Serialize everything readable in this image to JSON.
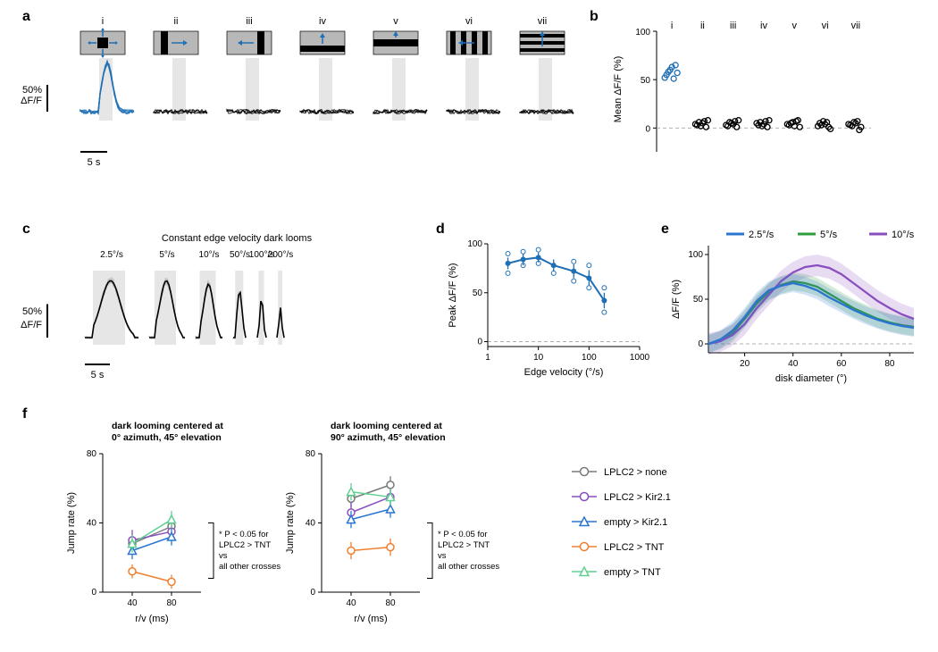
{
  "figure": {
    "background_color": "#ffffff",
    "text_color": "#000000",
    "font_family": "Arial"
  },
  "panel_a": {
    "label": "a",
    "stimuli": [
      "i",
      "ii",
      "iii",
      "iv",
      "v",
      "vi",
      "vii"
    ],
    "yscale_label_top": "50%",
    "yscale_label_bottom": "ΔF/F",
    "xscale_label": "5 s",
    "stimulus_bg": "#b8b8b8",
    "stimulus_fg": "#000000",
    "arrow_color": "#1f6fb5",
    "trace_respond_color": "#1f6fb5",
    "trace_flat_color": "#000000",
    "shaded_window_color": "#e6e6e6",
    "response_peak_pct": 90,
    "flat_noise_amp_pct": 5
  },
  "panel_b": {
    "label": "b",
    "ylabel": "Mean ΔF/F (%)",
    "categories": [
      "i",
      "ii",
      "iii",
      "iv",
      "v",
      "vi",
      "vii"
    ],
    "point_color_first": "#1f6fb5",
    "point_color_rest": "#000000",
    "ylim": [
      -20,
      100
    ],
    "ytick_step": 50,
    "zero_line_color": "#b0b0b0",
    "data": {
      "i": [
        52,
        55,
        58,
        60,
        63,
        51,
        65,
        57
      ],
      "ii": [
        4,
        3,
        6,
        2,
        5,
        7,
        1,
        8
      ],
      "iii": [
        3,
        2,
        6,
        5,
        4,
        7,
        1,
        8
      ],
      "iv": [
        5,
        3,
        6,
        2,
        4,
        7,
        1,
        8
      ],
      "v": [
        4,
        3,
        5,
        6,
        2,
        7,
        8,
        1
      ],
      "vi": [
        2,
        5,
        3,
        7,
        4,
        6,
        1,
        -1
      ],
      "vii": [
        4,
        3,
        2,
        6,
        5,
        7,
        -2,
        1
      ]
    }
  },
  "panel_c": {
    "label": "c",
    "title": "Constant edge velocity dark looms",
    "velocities": [
      "2.5°/s",
      "5°/s",
      "10°/s",
      "50°/s",
      "100°/s",
      "200°/s"
    ],
    "yscale_label_top": "50%",
    "yscale_label_bottom": "ΔF/F",
    "xscale_label": "5 s",
    "shaded_window_color": "#e6e6e6",
    "trace_grey": "#bfbfbf",
    "trace_mean": "#000000",
    "peaks": [
      85,
      85,
      80,
      70,
      60,
      45
    ],
    "widths": [
      60,
      40,
      30,
      15,
      10,
      8
    ]
  },
  "panel_d": {
    "label": "d",
    "xlabel": "Edge velocity (°/s)",
    "ylabel": "Peak ΔF/F (%)",
    "xlog": true,
    "xlim": [
      1,
      1000
    ],
    "ylim": [
      -5,
      100
    ],
    "xtick_labels": [
      "1",
      "10",
      "100",
      "1000"
    ],
    "ytick_step": 50,
    "line_color": "#1f6fb5",
    "scatter_color": "#1f6fb5",
    "zero_line_color": "#b0b0b0",
    "x": [
      2.5,
      5,
      10,
      20,
      50,
      100,
      200
    ],
    "mean": [
      80,
      84,
      86,
      78,
      72,
      65,
      42
    ],
    "err": [
      6,
      6,
      5,
      6,
      7,
      8,
      8
    ],
    "scatter_x": [
      2.5,
      2.5,
      5,
      5,
      10,
      10,
      20,
      50,
      50,
      100,
      100,
      200,
      200
    ],
    "scatter_y": [
      70,
      90,
      78,
      92,
      80,
      94,
      70,
      62,
      82,
      55,
      78,
      30,
      55
    ]
  },
  "panel_e": {
    "label": "e",
    "xlabel": "disk diameter (°)",
    "ylabel": "ΔF/F (%)",
    "xlim": [
      5,
      90
    ],
    "ylim": [
      -10,
      110
    ],
    "xtick_step": 20,
    "ytick_step": 50,
    "zero_line_color": "#b0b0b0",
    "legend": [
      {
        "label": "2.5°/s",
        "color": "#2a75d0"
      },
      {
        "label": "5°/s",
        "color": "#2f9c3e"
      },
      {
        "label": "10°/s",
        "color": "#8a4fbf"
      }
    ],
    "series": {
      "2.5": {
        "color": "#2a75d0",
        "x": [
          5,
          10,
          15,
          20,
          25,
          30,
          35,
          40,
          45,
          50,
          55,
          60,
          65,
          70,
          75,
          80,
          85,
          90
        ],
        "y": [
          0,
          5,
          15,
          30,
          48,
          60,
          65,
          68,
          65,
          60,
          52,
          45,
          38,
          32,
          27,
          23,
          20,
          18
        ],
        "err": 10
      },
      "5": {
        "color": "#2f9c3e",
        "x": [
          5,
          10,
          15,
          20,
          25,
          30,
          35,
          40,
          45,
          50,
          55,
          60,
          65,
          70,
          75,
          80,
          85,
          90
        ],
        "y": [
          0,
          4,
          12,
          28,
          45,
          58,
          66,
          70,
          68,
          64,
          56,
          48,
          40,
          34,
          28,
          24,
          21,
          19
        ],
        "err": 10
      },
      "10": {
        "color": "#8a4fbf",
        "x": [
          5,
          10,
          15,
          20,
          25,
          30,
          35,
          40,
          45,
          50,
          55,
          60,
          65,
          70,
          75,
          80,
          85,
          90
        ],
        "y": [
          0,
          3,
          10,
          22,
          40,
          55,
          70,
          80,
          86,
          88,
          85,
          78,
          68,
          58,
          48,
          40,
          33,
          28
        ],
        "err": 12
      }
    }
  },
  "panel_f": {
    "label": "f",
    "subtitle_left": "dark looming centered at\n0° azimuth, 45° elevation",
    "subtitle_right": "dark looming centered at\n90° azimuth, 45° elevation",
    "xlabel": "r/v (ms)",
    "ylabel": "Jump rate (%)",
    "xtick_labels": [
      "40",
      "80"
    ],
    "ylim": [
      0,
      80
    ],
    "ytick_step": 40,
    "annotation": "* P < 0.05 for\nLPLC2 > TNT\nvs\nall other crosses",
    "legend": [
      {
        "label": "LPLC2 > none",
        "color": "#7a7a7a",
        "marker": "circle"
      },
      {
        "label": "LPLC2 > Kir2.1",
        "color": "#8a4fbf",
        "marker": "circle"
      },
      {
        "label": "empty > Kir2.1",
        "color": "#2a75d0",
        "marker": "triangle"
      },
      {
        "label": "LPLC2 > TNT",
        "color": "#f08030",
        "marker": "circle"
      },
      {
        "label": "empty > TNT",
        "color": "#5fd090",
        "marker": "triangle"
      }
    ],
    "left_plot": {
      "LPLC2_none": {
        "y": [
          28,
          38
        ],
        "err": [
          4,
          4
        ]
      },
      "LPLC2_Kir21": {
        "y": [
          30,
          35
        ],
        "err": [
          6,
          5
        ]
      },
      "empty_Kir21": {
        "y": [
          24,
          32
        ],
        "err": [
          5,
          5
        ]
      },
      "LPLC2_TNT": {
        "y": [
          12,
          6
        ],
        "err": [
          4,
          4
        ]
      },
      "empty_TNT": {
        "y": [
          28,
          42
        ],
        "err": [
          5,
          5
        ]
      }
    },
    "right_plot": {
      "LPLC2_none": {
        "y": [
          54,
          62
        ],
        "err": [
          5,
          5
        ]
      },
      "LPLC2_Kir21": {
        "y": [
          46,
          55
        ],
        "err": [
          6,
          5
        ]
      },
      "empty_Kir21": {
        "y": [
          42,
          48
        ],
        "err": [
          5,
          5
        ]
      },
      "LPLC2_TNT": {
        "y": [
          24,
          26
        ],
        "err": [
          5,
          5
        ]
      },
      "empty_TNT": {
        "y": [
          58,
          55
        ],
        "err": [
          5,
          5
        ]
      }
    }
  }
}
